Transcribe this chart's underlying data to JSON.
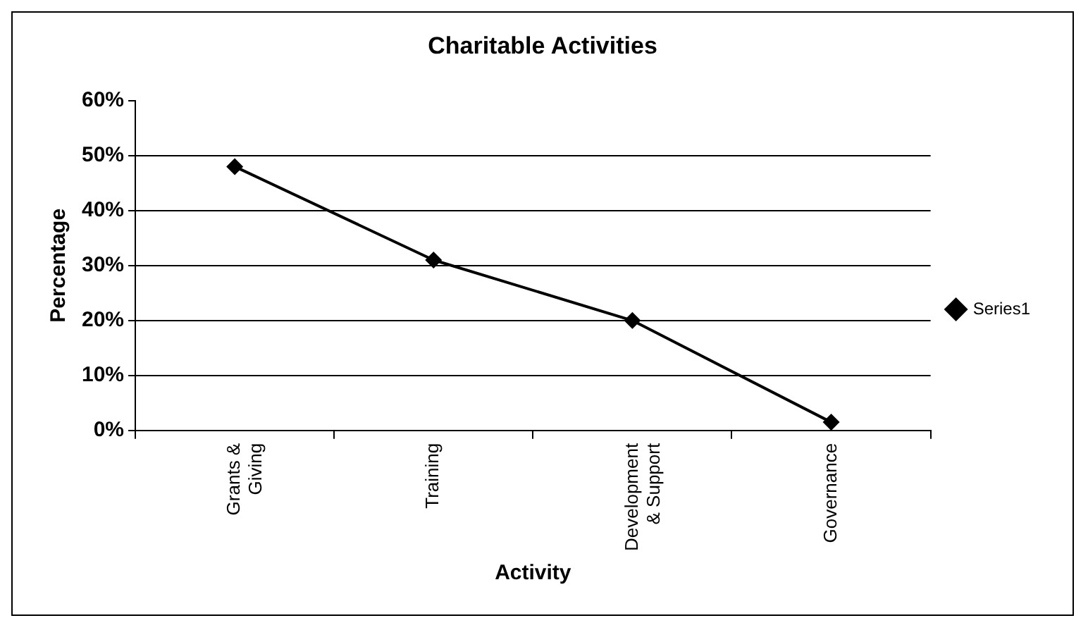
{
  "chart_data": {
    "type": "line",
    "title": "Charitable Activities",
    "xlabel": "Activity",
    "ylabel": "Percentage",
    "categories": [
      "Grants & Giving",
      "Training",
      "Development & Support",
      "Governance"
    ],
    "series": [
      {
        "name": "Series1",
        "color": "#000000",
        "values": [
          48,
          31,
          20,
          1.5
        ]
      }
    ],
    "ylim": [
      0,
      60
    ],
    "yticks": [
      {
        "value": 0,
        "label": "0%"
      },
      {
        "value": 10,
        "label": "10%"
      },
      {
        "value": 20,
        "label": "20%"
      },
      {
        "value": 30,
        "label": "30%"
      },
      {
        "value": 40,
        "label": "40%"
      },
      {
        "value": 50,
        "label": "50%"
      },
      {
        "value": 60,
        "label": "60%"
      }
    ],
    "grid": "y",
    "legend": "right",
    "marker": "diamond",
    "line_style": "solid"
  }
}
